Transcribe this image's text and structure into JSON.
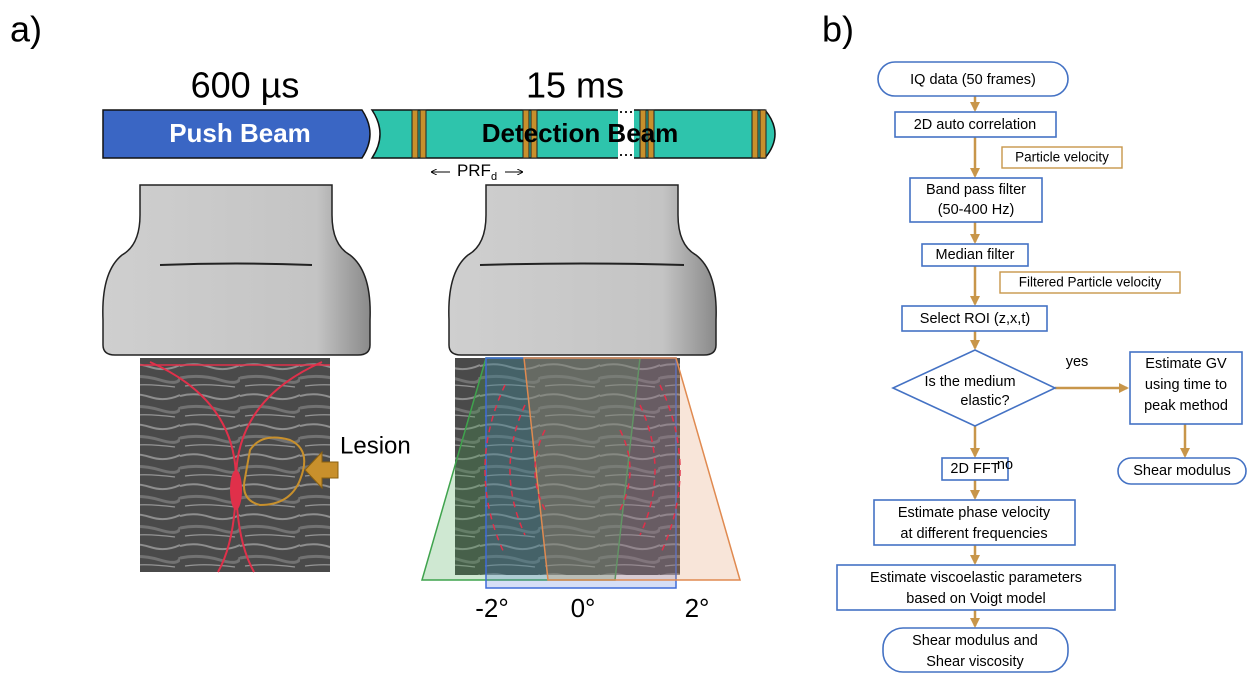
{
  "panel_a": {
    "label": "a)",
    "push_time": "600 µs",
    "detect_time": "15 ms",
    "push_beam": "Push Beam",
    "detection_beam": "Detection Beam",
    "prf": "PRF",
    "prf_sub": "d",
    "lesion": "Lesion",
    "angles": [
      "-2°",
      "0°",
      "2°"
    ]
  },
  "panel_b": {
    "label": "b)",
    "nodes": [
      {
        "lines": [
          "IQ data (50 frames)"
        ]
      },
      {
        "lines": [
          "2D auto correlation"
        ]
      },
      {
        "lines": [
          "Band pass filter",
          "(50-400 Hz)"
        ]
      },
      {
        "lines": [
          "Median filter"
        ]
      },
      {
        "lines": [
          "Select ROI (z,x,t)"
        ]
      },
      {
        "lines": [
          "Is the medium",
          "elastic?"
        ]
      },
      {
        "lines": [
          "Estimate GV",
          "using time to",
          "peak method"
        ]
      },
      {
        "lines": [
          "Shear modulus"
        ]
      },
      {
        "lines": [
          "2D FFT"
        ]
      },
      {
        "lines": [
          "Estimate phase velocity",
          "at different frequencies"
        ]
      },
      {
        "lines": [
          "Estimate viscoelastic parameters",
          "based on Voigt model"
        ]
      },
      {
        "lines": [
          "Shear modulus and",
          "Shear viscosity"
        ]
      }
    ],
    "annotations": [
      "Particle velocity",
      "Filtered Particle velocity"
    ],
    "branches": [
      "yes",
      "no"
    ]
  }
}
